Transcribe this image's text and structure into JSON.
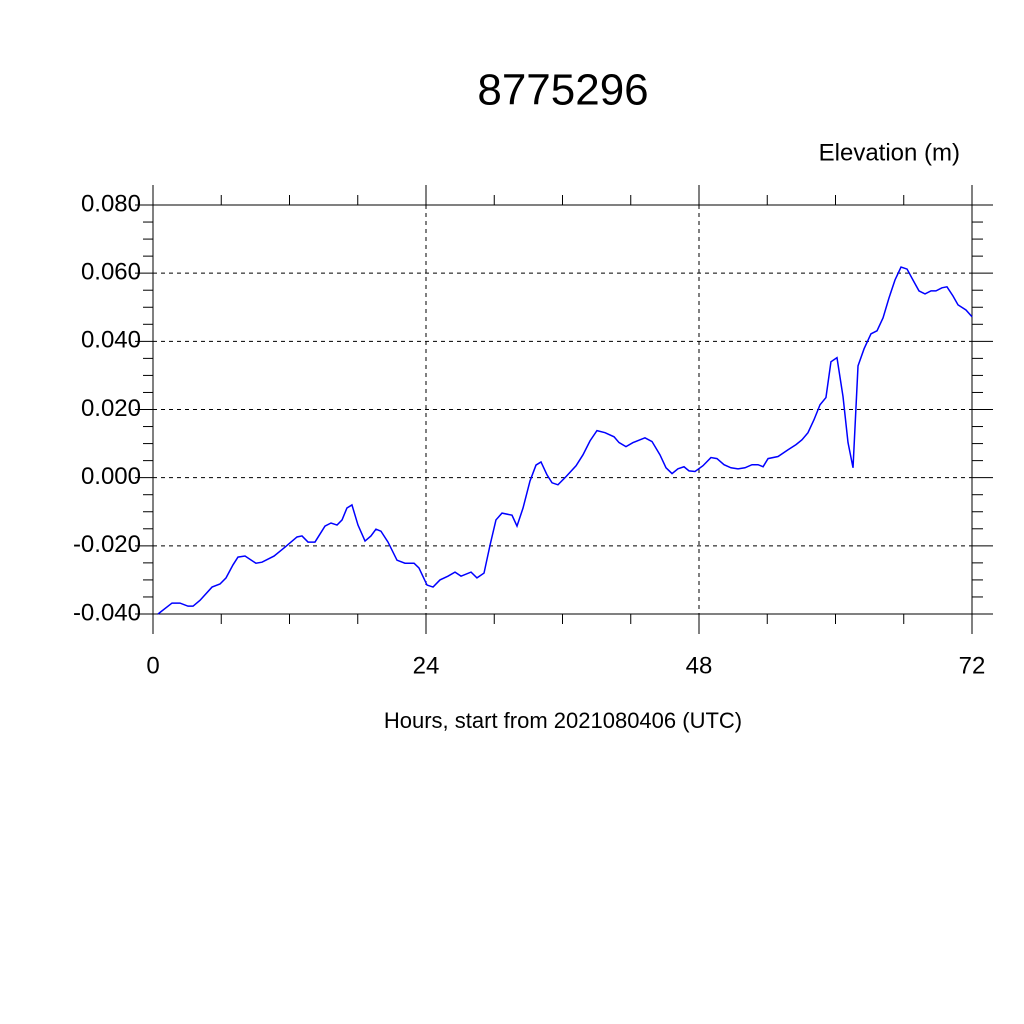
{
  "chart_data": {
    "type": "line",
    "title": "8775296",
    "subtitle": "Elevation (m)",
    "x_label": "Hours, start from 2021080406 (UTC)",
    "xlim": [
      0,
      72
    ],
    "xticks": [
      0,
      24,
      48,
      72
    ],
    "ylim": [
      -0.04,
      0.08
    ],
    "yticks": [
      {
        "value": -0.04,
        "label": "-0.040"
      },
      {
        "value": -0.02,
        "label": "-0.020"
      },
      {
        "value": 0,
        "label": "0.000"
      },
      {
        "value": 0.02,
        "label": "0.020"
      },
      {
        "value": 0.04,
        "label": "0.040"
      },
      {
        "value": 0.06,
        "label": "0.060"
      },
      {
        "value": 0.08,
        "label": "0.080"
      }
    ],
    "grid": true,
    "x": [
      0.44,
      1.67,
      2.37,
      3.08,
      3.52,
      4.13,
      5.19,
      5.89,
      6.42,
      7.03,
      7.47,
      8.09,
      9.05,
      9.58,
      10.64,
      11.6,
      12.66,
      13.1,
      13.63,
      14.24,
      15.12,
      15.65,
      16.18,
      16.62,
      17.05,
      17.49,
      18.02,
      18.64,
      19.16,
      19.6,
      20.04,
      20.66,
      21.45,
      22.15,
      22.95,
      23.38,
      24.09,
      24.62,
      25.23,
      25.93,
      26.55,
      27.08,
      27.96,
      28.48,
      29.1,
      29.63,
      30.15,
      30.68,
      31.56,
      32,
      32.53,
      33.14,
      33.67,
      34.11,
      34.64,
      35.08,
      35.6,
      36.31,
      37.19,
      37.8,
      38.42,
      39.03,
      39.74,
      40.53,
      40.97,
      41.58,
      42.2,
      42.81,
      43.25,
      43.87,
      44.57,
      45.1,
      45.63,
      46.15,
      46.68,
      47.12,
      47.65,
      48.35,
      49.05,
      49.58,
      50.2,
      50.81,
      51.43,
      52.04,
      52.66,
      53.19,
      53.63,
      54.07,
      54.95,
      55.83,
      56.53,
      57.05,
      57.58,
      58.11,
      58.64,
      59.16,
      59.6,
      60.13,
      60.66,
      61.1,
      61.54,
      61.98,
      62.51,
      63.12,
      63.65,
      64.18,
      64.7,
      65.23,
      65.76,
      66.29,
      66.81,
      67.34,
      67.87,
      68.4,
      68.83,
      69.36,
      69.8,
      70.33,
      70.77,
      71.47,
      72
    ],
    "series": [
      {
        "color": "#0000ff",
        "values": [
          -0.04,
          -0.0368,
          -0.0368,
          -0.0377,
          -0.0377,
          -0.036,
          -0.0321,
          -0.0312,
          -0.0294,
          -0.0256,
          -0.0233,
          -0.023,
          -0.0251,
          -0.0248,
          -0.023,
          -0.0204,
          -0.0174,
          -0.0171,
          -0.0189,
          -0.0189,
          -0.0142,
          -0.0133,
          -0.0139,
          -0.0124,
          -0.0089,
          -0.008,
          -0.0139,
          -0.0186,
          -0.0171,
          -0.0151,
          -0.0157,
          -0.0189,
          -0.0242,
          -0.0251,
          -0.0251,
          -0.0265,
          -0.0315,
          -0.0321,
          -0.03,
          -0.0289,
          -0.0277,
          -0.0289,
          -0.0277,
          -0.0294,
          -0.028,
          -0.0198,
          -0.0124,
          -0.0104,
          -0.011,
          -0.0142,
          -0.0089,
          -0.001,
          0.0037,
          0.0046,
          0.0008,
          -0.0015,
          -0.0021,
          0.0003,
          0.0035,
          0.0067,
          0.0108,
          0.0138,
          0.0132,
          0.012,
          0.0103,
          0.0091,
          0.0103,
          0.0111,
          0.0117,
          0.0106,
          0.0067,
          0.0029,
          0.0012,
          0.0026,
          0.0032,
          0.002,
          0.0018,
          0.0035,
          0.0059,
          0.0056,
          0.0038,
          0.0029,
          0.0026,
          0.0029,
          0.0038,
          0.0038,
          0.0032,
          0.0056,
          0.0062,
          0.0082,
          0.0097,
          0.0111,
          0.0132,
          0.017,
          0.0214,
          0.0235,
          0.034,
          0.0352,
          0.0238,
          0.0103,
          0.0029,
          0.0328,
          0.0378,
          0.0422,
          0.0431,
          0.0469,
          0.0527,
          0.058,
          0.0618,
          0.0612,
          0.058,
          0.0548,
          0.0539,
          0.0548,
          0.0548,
          0.0557,
          0.056,
          0.0533,
          0.0507,
          0.0492,
          0.0472
        ]
      }
    ]
  }
}
